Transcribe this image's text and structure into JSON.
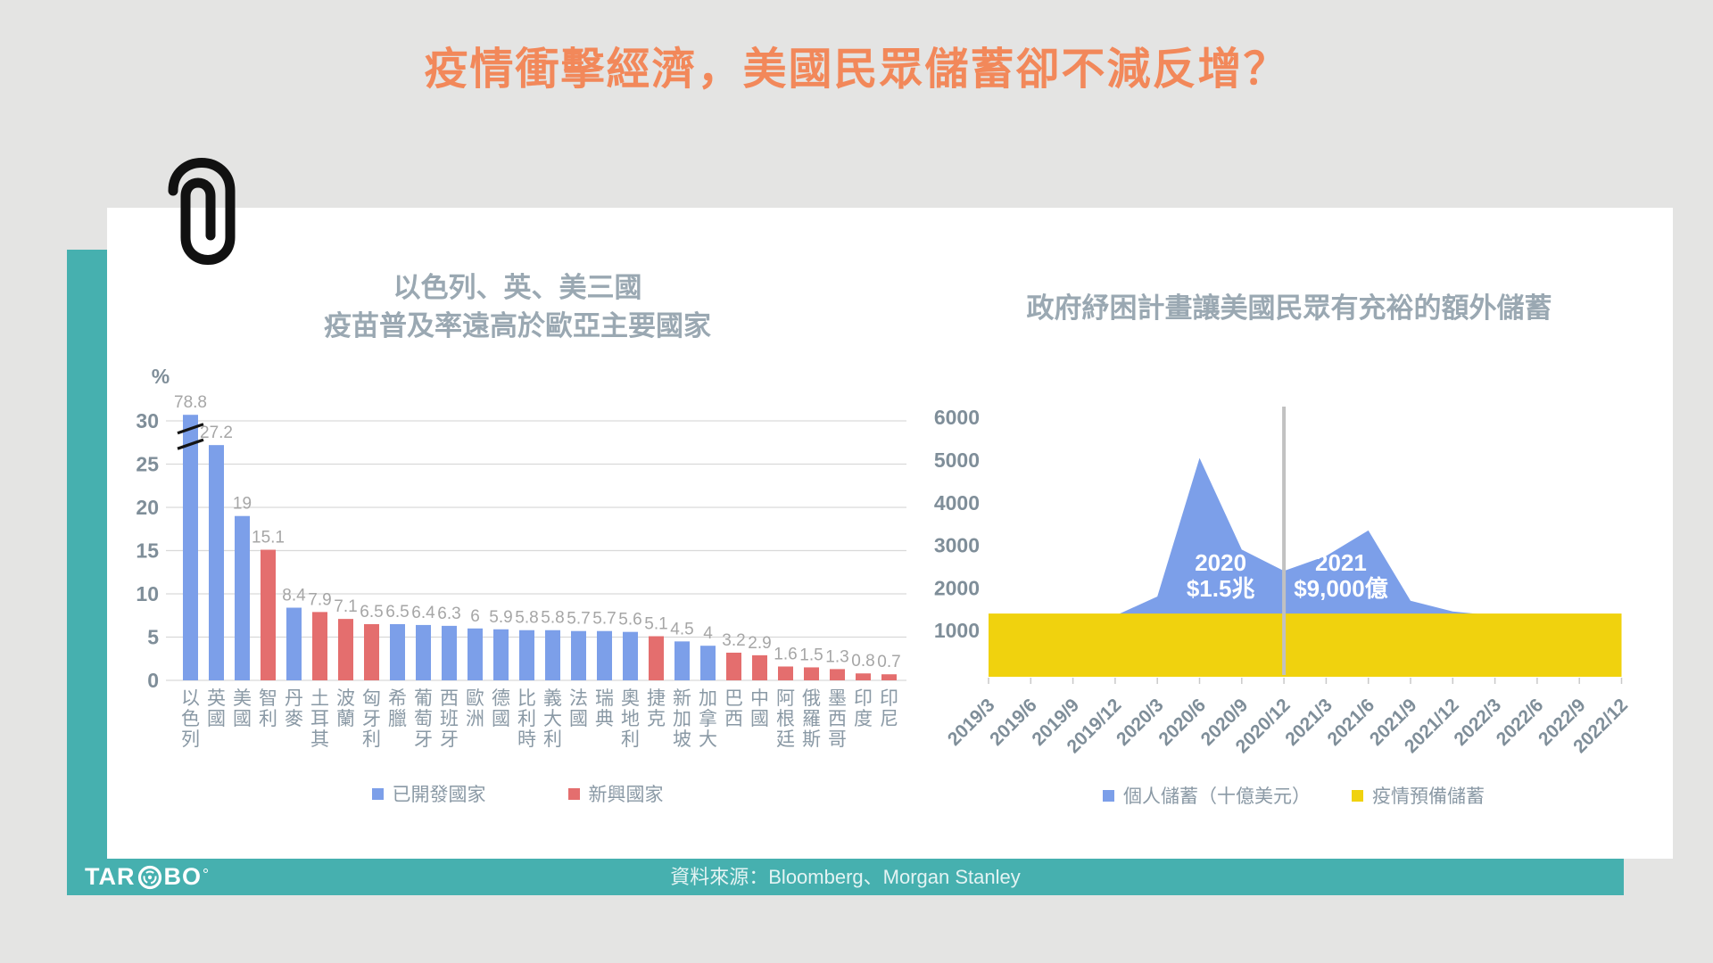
{
  "page": {
    "title": "疫情衝擊經濟，美國民眾儲蓄卻不減反增？",
    "footer": {
      "logo_prefix": "TAR",
      "logo_suffix": "BO",
      "source": "資料來源：Bloomberg、Morgan  Stanley"
    }
  },
  "colors": {
    "background": "#E4E4E3",
    "card": "#FFFFFF",
    "teal": "#46B0AF",
    "title_orange": "#F2885A",
    "chart_title": "#9AA8B2",
    "axis_label": "#7F8E99",
    "data_label": "#A6A6A6",
    "category_label": "#8A99A5",
    "gridline": "#D9D9D9",
    "divider_line": "#C1C1C1",
    "break_mark": "#141414",
    "paperclip": "#111111"
  },
  "chart_data": [
    {
      "id": "vaccine-coverage-bar",
      "type": "bar",
      "title_lines": [
        "以色列、英、美三國",
        "疫苗普及率遠高於歐亞主要國家"
      ],
      "unit_label": "%",
      "ylim": [
        0,
        30
      ],
      "yticks": [
        0,
        5,
        10,
        15,
        20,
        25,
        30
      ],
      "grid": true,
      "axis_break": {
        "category": "以色列",
        "shown_max": 30
      },
      "categories": [
        "以色列",
        "英國",
        "美國",
        "智利",
        "丹麥",
        "土耳其",
        "波蘭",
        "匈牙利",
        "希臘",
        "葡萄牙",
        "西班牙",
        "歐洲",
        "德國",
        "比利時",
        "義大利",
        "法國",
        "瑞典",
        "奧地利",
        "捷克",
        "新加坡",
        "加拿大",
        "巴西",
        "中國",
        "阿根廷",
        "俄羅斯",
        "墨西哥",
        "印度",
        "印尼"
      ],
      "values": [
        78.8,
        27.2,
        19,
        15.1,
        8.4,
        7.9,
        7.1,
        6.5,
        6.5,
        6.4,
        6.3,
        6,
        5.9,
        5.8,
        5.8,
        5.7,
        5.7,
        5.6,
        5.1,
        4.5,
        4,
        3.2,
        2.9,
        1.6,
        1.5,
        1.3,
        0.8,
        0.7
      ],
      "groups": [
        "developed",
        "developed",
        "developed",
        "emerging",
        "developed",
        "emerging",
        "emerging",
        "emerging",
        "developed",
        "developed",
        "developed",
        "developed",
        "developed",
        "developed",
        "developed",
        "developed",
        "developed",
        "developed",
        "emerging",
        "developed",
        "developed",
        "emerging",
        "emerging",
        "emerging",
        "emerging",
        "emerging",
        "emerging",
        "emerging"
      ],
      "group_colors": {
        "developed": "#7C9FE9",
        "emerging": "#E46E6E"
      },
      "legend": [
        {
          "label": "已開發國家",
          "group": "developed"
        },
        {
          "label": "新興國家",
          "group": "emerging"
        }
      ],
      "legend_position": "bottom"
    },
    {
      "id": "us-savings-area",
      "type": "area",
      "title": "政府紓困計畫讓美國民眾有充裕的額外儲蓄",
      "x": [
        "2019/3",
        "2019/6",
        "2019/9",
        "2019/12",
        "2020/3",
        "2020/6",
        "2020/9",
        "2020/12",
        "2021/3",
        "2021/6",
        "2021/9",
        "2021/12",
        "2022/3",
        "2022/6",
        "2022/9",
        "2022/12"
      ],
      "yticks": [
        1000,
        2000,
        3000,
        4000,
        5000,
        6000
      ],
      "ylim": [
        0,
        6500
      ],
      "series": [
        {
          "name": "個人儲蓄（十億美元）",
          "type": "area",
          "color": "#7C9FE9",
          "values": [
            1300,
            1300,
            1320,
            1350,
            1800,
            5050,
            2900,
            2400,
            2750,
            3350,
            1700,
            1450,
            1350,
            1350,
            1350,
            1350
          ]
        },
        {
          "name": "疫情預備儲蓄",
          "type": "band",
          "color": "#F0D20E",
          "value": 1400
        }
      ],
      "divider_x": "2020/12",
      "annotations": [
        {
          "x_index": 5.5,
          "lines": [
            "2020",
            "$1.5兆"
          ]
        },
        {
          "x_index": 8.35,
          "lines": [
            "2021",
            "$9,000億"
          ]
        }
      ],
      "legend_position": "bottom"
    }
  ]
}
